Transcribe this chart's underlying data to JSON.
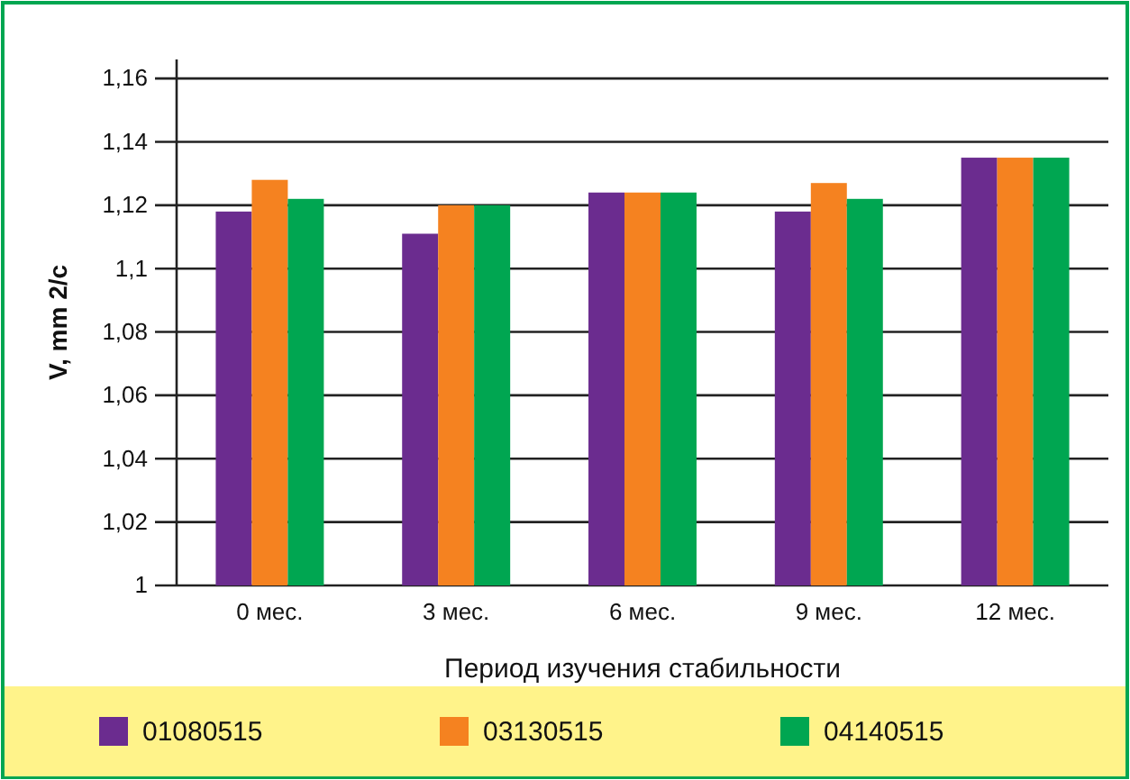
{
  "chart_data": {
    "type": "bar",
    "xlabel": "Период изучения стабильности",
    "ylabel": "V, mm 2/c",
    "categories": [
      "0 мес.",
      "3 мес.",
      "6 мес.",
      "9 мес.",
      "12 мес."
    ],
    "series": [
      {
        "name": "01080515",
        "color": "#6b2c8f",
        "values": [
          1.118,
          1.111,
          1.124,
          1.118,
          1.135
        ]
      },
      {
        "name": "03130515",
        "color": "#f58220",
        "values": [
          1.128,
          1.12,
          1.124,
          1.127,
          1.135
        ]
      },
      {
        "name": "04140515",
        "color": "#00a651",
        "values": [
          1.122,
          1.12,
          1.124,
          1.122,
          1.135
        ]
      }
    ],
    "ylim": [
      1,
      1.166
    ],
    "yticks": [
      {
        "value": 1,
        "label": "1"
      },
      {
        "value": 1.02,
        "label": "1,02"
      },
      {
        "value": 1.04,
        "label": "1,04"
      },
      {
        "value": 1.06,
        "label": "1,06"
      },
      {
        "value": 1.08,
        "label": "1,08"
      },
      {
        "value": 1.1,
        "label": "1,1"
      },
      {
        "value": 1.12,
        "label": "1,12"
      },
      {
        "value": 1.14,
        "label": "1,14"
      },
      {
        "value": 1.16,
        "label": "1,16"
      }
    ],
    "grid": "y",
    "legend": "bottom"
  }
}
